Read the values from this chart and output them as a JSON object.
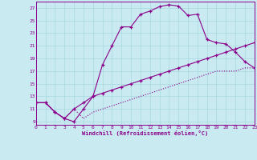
{
  "xlabel": "Windchill (Refroidissement éolien,°C)",
  "bg_color": "#c8eaf0",
  "grid_color": "#a8d8e0",
  "line_color": "#8b008b",
  "xlim": [
    0,
    23
  ],
  "ylim": [
    8.5,
    28
  ],
  "yticks": [
    9,
    11,
    13,
    15,
    17,
    19,
    21,
    23,
    25,
    27
  ],
  "xticks": [
    0,
    1,
    2,
    3,
    4,
    5,
    6,
    7,
    8,
    9,
    10,
    11,
    12,
    13,
    14,
    15,
    16,
    17,
    18,
    19,
    20,
    21,
    22,
    23
  ],
  "curve1_x": [
    0,
    1,
    2,
    3,
    4,
    5,
    6,
    7,
    8,
    9,
    10,
    11,
    12,
    13,
    14,
    15,
    16,
    17,
    18,
    19,
    20,
    21,
    22,
    23
  ],
  "curve1_y": [
    12,
    12,
    10.5,
    9.5,
    9,
    11,
    13,
    18,
    21,
    24,
    24,
    26,
    26.5,
    27.2,
    27.5,
    27.3,
    25.8,
    26,
    22,
    21.5,
    21.3,
    20,
    18.5,
    17.5
  ],
  "curve2_x": [
    5,
    23
  ],
  "curve2_y": [
    12,
    21.5
  ],
  "curve3_x": [
    5,
    23
  ],
  "curve3_y": [
    9.5,
    17.5
  ],
  "curve2_full_x": [
    0,
    1,
    2,
    3,
    4,
    5,
    6,
    7,
    8,
    9,
    10,
    11,
    12,
    13,
    14,
    15,
    16,
    17,
    18,
    19,
    20,
    21,
    22,
    23
  ],
  "curve2_full_y": [
    12,
    12,
    10.5,
    9.5,
    11,
    12,
    13,
    13.5,
    14,
    14.5,
    15,
    15.5,
    16,
    16.5,
    17,
    17.5,
    18,
    18.5,
    19,
    19.5,
    20,
    20.5,
    21,
    21.5
  ],
  "curve3_full_x": [
    0,
    1,
    2,
    3,
    4,
    5,
    6,
    7,
    8,
    9,
    10,
    11,
    12,
    13,
    14,
    15,
    16,
    17,
    18,
    19,
    20,
    21,
    22,
    23
  ],
  "curve3_full_y": [
    12,
    12,
    10.5,
    9.5,
    11,
    9.5,
    10.5,
    11,
    11.5,
    12,
    12.5,
    13,
    13.5,
    14,
    14.5,
    15,
    15.5,
    16,
    16.5,
    17,
    17,
    17,
    17.5,
    17.5
  ]
}
